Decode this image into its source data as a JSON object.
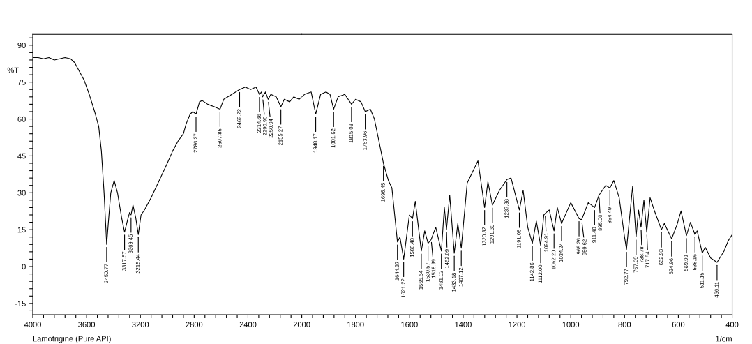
{
  "chart_data": [
    {
      "type": "line",
      "ylabel": "%T",
      "annotations": [
        "Lamotrigine (Pure API)",
        {
          "text": "3450.77",
          "x": 3450.77,
          "y": 9
        },
        {
          "text": "3317.57",
          "x": 3317.57,
          "y": 14
        },
        {
          "text": "3269.45",
          "x": 3269.45,
          "y": 21
        },
        {
          "text": "3215.44",
          "x": 3215.44,
          "y": 13
        },
        {
          "text": "2786.27",
          "x": 2786.27,
          "y": 62
        },
        {
          "text": "2607.85",
          "x": 2607.85,
          "y": 64
        },
        {
          "text": "2462.22",
          "x": 2462.22,
          "y": 72
        },
        {
          "text": "2314.66",
          "x": 2314.66,
          "y": 70
        },
        {
          "text": "2290.90",
          "x": 2290.9,
          "y": 69
        },
        {
          "text": "2250.04",
          "x": 2250.04,
          "y": 68
        },
        {
          "text": "2155.27",
          "x": 2155.27,
          "y": 65
        }
      ],
      "x": [
        4000,
        3960,
        3920,
        3880,
        3840,
        3800,
        3760,
        3720,
        3690,
        3660,
        3620,
        3580,
        3540,
        3510,
        3490,
        3470,
        3450.77,
        3435,
        3420,
        3395,
        3370,
        3340,
        3317.57,
        3295,
        3280,
        3269.45,
        3255,
        3235,
        3215.44,
        3195,
        3170,
        3120,
        3060,
        3000,
        2960,
        2920,
        2880,
        2860,
        2830,
        2810,
        2786.27,
        2760,
        2740,
        2700,
        2650,
        2607.85,
        2580,
        2520,
        2462.22,
        2420,
        2380,
        2340,
        2314.66,
        2300,
        2290.9,
        2270,
        2250.04,
        2230,
        2190,
        2155.27,
        2130,
        2090,
        2060,
        2020,
        2000
      ],
      "series": [
        {
          "color": "#000000",
          "values": [
            85,
            85,
            84.5,
            85,
            84,
            84.5,
            85,
            84.5,
            83,
            80,
            76,
            70,
            63,
            57,
            47,
            30,
            9,
            20,
            30,
            35,
            30,
            20,
            14,
            19,
            22,
            21,
            25,
            20,
            13,
            21,
            23,
            28,
            35,
            42,
            47,
            51,
            54,
            58,
            62,
            63,
            62,
            67,
            67.5,
            66,
            65,
            64,
            68,
            70,
            72,
            73,
            72,
            73,
            70,
            71,
            69,
            71,
            68,
            70,
            69,
            65,
            68,
            67,
            69,
            68,
            69
          ]
        }
      ],
      "xlim": [
        4000,
        2000
      ],
      "xticks": [
        4000,
        {
          "value": 3920,
          "label": null
        },
        {
          "value": 3840,
          "label": null
        },
        {
          "value": 3760,
          "label": null
        },
        {
          "value": 3680,
          "label": null
        },
        3600,
        {
          "value": 3520,
          "label": null
        },
        {
          "value": 3440,
          "label": null
        },
        {
          "value": 3360,
          "label": null
        },
        {
          "value": 3280,
          "label": null
        },
        3200,
        {
          "value": 3120,
          "label": null
        },
        {
          "value": 3040,
          "label": null
        },
        {
          "value": 2960,
          "label": null
        },
        {
          "value": 2880,
          "label": null
        },
        2800,
        {
          "value": 2720,
          "label": null
        },
        {
          "value": 2640,
          "label": null
        },
        {
          "value": 2560,
          "label": null
        },
        {
          "value": 2480,
          "label": null
        },
        2400,
        {
          "value": 2320,
          "label": null
        },
        {
          "value": 2240,
          "label": null
        },
        {
          "value": 2160,
          "label": null
        },
        {
          "value": 2080,
          "label": null
        },
        2000
      ],
      "ylim": [
        -19.6,
        94.4
      ],
      "yticks": [
        {
          "value": -18,
          "label": null
        },
        -15,
        {
          "value": -12,
          "label": null
        },
        {
          "value": -9,
          "label": null
        },
        {
          "value": -6,
          "label": null
        },
        {
          "value": -3,
          "label": null
        },
        0,
        {
          "value": 3,
          "label": null
        },
        {
          "value": 6,
          "label": null
        },
        {
          "value": 9,
          "label": null
        },
        {
          "value": 12,
          "label": null
        },
        15,
        {
          "value": 18,
          "label": null
        },
        {
          "value": 21,
          "label": null
        },
        {
          "value": 24,
          "label": null
        },
        {
          "value": 27,
          "label": null
        },
        30,
        {
          "value": 33,
          "label": null
        },
        {
          "value": 36,
          "label": null
        },
        {
          "value": 39,
          "label": null
        },
        {
          "value": 42,
          "label": null
        },
        45,
        {
          "value": 48,
          "label": null
        },
        {
          "value": 51,
          "label": null
        },
        {
          "value": 54,
          "label": null
        },
        {
          "value": 57,
          "label": null
        },
        60,
        {
          "value": 63,
          "label": null
        },
        {
          "value": 66,
          "label": null
        },
        {
          "value": 69,
          "label": null
        },
        {
          "value": 72,
          "label": null
        },
        75,
        {
          "value": 78,
          "label": null
        },
        {
          "value": 81,
          "label": null
        },
        {
          "value": 84,
          "label": null
        },
        {
          "value": 87,
          "label": null
        },
        90,
        {
          "value": 93,
          "label": null
        }
      ],
      "grid": false,
      "marker": "none",
      "line_style": "solid"
    },
    {
      "type": "line",
      "xlabel": "1/cm",
      "annotations": [
        {
          "text": "1948.17",
          "x": 1948.17,
          "y": 62
        },
        {
          "text": "1881.62",
          "x": 1881.62,
          "y": 64
        },
        {
          "text": "1815.08",
          "x": 1815.08,
          "y": 66
        },
        {
          "text": "1763.96",
          "x": 1763.96,
          "y": 63
        },
        {
          "text": "1696.45",
          "x": 1696.45,
          "y": 42
        },
        {
          "text": "1644.37",
          "x": 1644.37,
          "y": 10
        },
        {
          "text": "1621.22",
          "x": 1621.22,
          "y": 3
        },
        {
          "text": "1588.40",
          "x": 1588.4,
          "y": 19.5
        },
        {
          "text": "1555.64",
          "x": 1555.64,
          "y": 6.3
        },
        {
          "text": "1530.57",
          "x": 1530.57,
          "y": 9.5
        },
        {
          "text": "1518.99",
          "x": 1518.99,
          "y": 11
        },
        {
          "text": "1481.02",
          "x": 1481.02,
          "y": 6.3
        },
        {
          "text": "1462.09",
          "x": 1462.09,
          "y": 15
        },
        {
          "text": "1433.18",
          "x": 1433.18,
          "y": 5.4
        },
        {
          "text": "1407.12",
          "x": 1407.12,
          "y": 7.5
        },
        {
          "text": "1320.32",
          "x": 1320.32,
          "y": 24
        },
        {
          "text": "1291.39",
          "x": 1291.39,
          "y": 25
        },
        {
          "text": "1237.38",
          "x": 1237.38,
          "y": 35.4
        },
        {
          "text": "1191.06",
          "x": 1191.06,
          "y": 23
        },
        {
          "text": "1142.86",
          "x": 1142.86,
          "y": 9.5
        },
        {
          "text": "1112.00",
          "x": 1112.0,
          "y": 8.6
        },
        {
          "text": "1094.91",
          "x": 1094.91,
          "y": 21.6
        },
        {
          "text": "1062.20",
          "x": 1062.2,
          "y": 14.5
        },
        {
          "text": "1034.24",
          "x": 1034.24,
          "y": 17.5
        },
        {
          "text": "969.26",
          "x": 969.26,
          "y": 19.5
        },
        {
          "text": "959.62",
          "x": 959.62,
          "y": 19
        },
        {
          "text": "911.40",
          "x": 911.4,
          "y": 24
        },
        {
          "text": "895.00",
          "x": 895.0,
          "y": 29
        },
        {
          "text": "854.49",
          "x": 854.49,
          "y": 32
        },
        {
          "text": "792.77",
          "x": 792.77,
          "y": 7
        },
        {
          "text": "757.09",
          "x": 757.09,
          "y": 12
        },
        {
          "text": "738.78",
          "x": 738.78,
          "y": 16
        },
        {
          "text": "717.54",
          "x": 717.54,
          "y": 14
        },
        {
          "text": "662.93",
          "x": 662.93,
          "y": 15
        },
        {
          "text": "624.96",
          "x": 624.96,
          "y": 11.3
        },
        {
          "text": "569.99",
          "x": 569.99,
          "y": 12.6
        },
        {
          "text": "538.16",
          "x": 538.16,
          "y": 13
        },
        {
          "text": "511.15",
          "x": 511.15,
          "y": 5.5
        },
        {
          "text": "456.11",
          "x": 456.11,
          "y": 1.7
        }
      ],
      "x": [
        2000,
        1990,
        1965,
        1948.17,
        1930,
        1910,
        1895,
        1881.62,
        1865,
        1840,
        1815.08,
        1800,
        1780,
        1763.96,
        1745,
        1730,
        1715,
        1696.45,
        1678,
        1665,
        1644.37,
        1635,
        1621.22,
        1600,
        1588.4,
        1578,
        1555.64,
        1543,
        1530.57,
        1518.99,
        1502,
        1481.02,
        1470,
        1462.09,
        1450,
        1433.18,
        1420,
        1407.12,
        1385,
        1345,
        1320.32,
        1308,
        1291.39,
        1265,
        1237.38,
        1222,
        1191.06,
        1177,
        1160,
        1142.86,
        1128,
        1112,
        1100,
        1094.91,
        1080,
        1062.2,
        1050,
        1034.24,
        1000,
        969.26,
        959.62,
        935,
        911.4,
        895,
        870,
        854.49,
        840,
        820,
        800,
        792.77,
        770,
        757.09,
        748,
        738.78,
        728,
        717.54,
        705,
        690,
        662.93,
        652,
        624.96,
        605,
        590,
        569.99,
        555,
        538.16,
        530,
        511.15,
        500,
        480,
        456.11,
        430,
        415,
        400
      ],
      "series": [
        {
          "color": "#000000",
          "values": [
            69,
            70,
            71,
            62,
            70,
            71,
            70,
            64,
            69,
            70,
            66,
            68,
            67,
            63,
            64,
            60,
            52,
            42,
            35,
            32,
            10,
            12,
            3,
            21,
            19.5,
            26.5,
            6.3,
            14.5,
            9.5,
            11,
            16,
            6.3,
            24,
            15,
            29,
            5.4,
            17.5,
            7.5,
            34,
            43,
            24,
            34.5,
            25,
            31,
            35.4,
            36,
            23,
            31,
            16,
            9.5,
            18.5,
            8.6,
            21,
            21.6,
            23,
            14.5,
            24,
            17.5,
            26,
            19.5,
            19,
            26,
            24,
            29,
            33,
            32,
            35,
            28,
            12,
            7,
            32.6,
            12,
            23,
            16,
            27,
            14,
            28,
            23,
            15,
            17.5,
            11.3,
            17,
            22.6,
            12.6,
            18,
            13,
            14.5,
            5.5,
            7.8,
            3.5,
            1.7,
            6.3,
            10.4,
            13
          ]
        }
      ],
      "xlim": [
        2000,
        400
      ],
      "xticks": [
        {
          "value": 1960,
          "label": null
        },
        {
          "value": 1920,
          "label": null
        },
        {
          "value": 1880,
          "label": null
        },
        {
          "value": 1840,
          "label": null
        },
        1800,
        {
          "value": 1760,
          "label": null
        },
        {
          "value": 1720,
          "label": null
        },
        {
          "value": 1680,
          "label": null
        },
        {
          "value": 1640,
          "label": null
        },
        1600,
        {
          "value": 1560,
          "label": null
        },
        {
          "value": 1520,
          "label": null
        },
        {
          "value": 1480,
          "label": null
        },
        {
          "value": 1440,
          "label": null
        },
        1400,
        {
          "value": 1360,
          "label": null
        },
        {
          "value": 1320,
          "label": null
        },
        {
          "value": 1280,
          "label": null
        },
        {
          "value": 1240,
          "label": null
        },
        1200,
        {
          "value": 1160,
          "label": null
        },
        {
          "value": 1120,
          "label": null
        },
        {
          "value": 1080,
          "label": null
        },
        {
          "value": 1040,
          "label": null
        },
        1000,
        {
          "value": 960,
          "label": null
        },
        {
          "value": 920,
          "label": null
        },
        {
          "value": 880,
          "label": null
        },
        {
          "value": 840,
          "label": null
        },
        800,
        {
          "value": 760,
          "label": null
        },
        {
          "value": 720,
          "label": null
        },
        {
          "value": 680,
          "label": null
        },
        {
          "value": 640,
          "label": null
        },
        600,
        {
          "value": 560,
          "label": null
        },
        {
          "value": 520,
          "label": null
        },
        {
          "value": 480,
          "label": null
        },
        {
          "value": 440,
          "label": null
        },
        400
      ],
      "ylim": [
        -19.6,
        94.4
      ],
      "tick_labels": "x",
      "grid": false,
      "marker": "none",
      "line_style": "solid"
    }
  ]
}
